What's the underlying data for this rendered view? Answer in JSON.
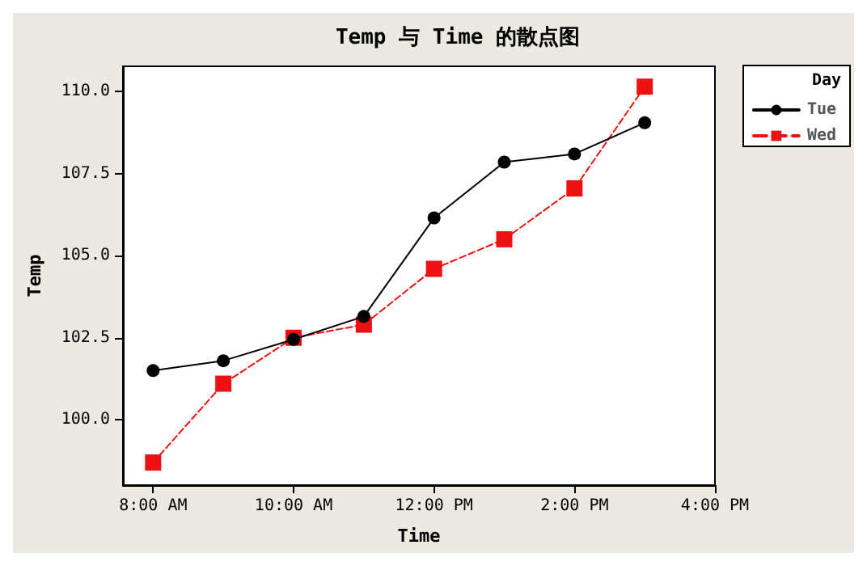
{
  "chart_data": {
    "type": "line",
    "title": "Temp 与 Time 的散点图",
    "xlabel": "Time",
    "ylabel": "Temp",
    "legend_title": "Day",
    "legend": "top right",
    "x": [
      8,
      9,
      10,
      11,
      12,
      13,
      14,
      15
    ],
    "series": [
      {
        "name": "Tue",
        "color": "#000000",
        "marker": "circle",
        "line_style": "solid",
        "values": [
          101.5,
          101.8,
          102.45,
          103.15,
          106.15,
          107.85,
          108.1,
          109.05
        ]
      },
      {
        "name": "Wed",
        "color": "#ee1111",
        "marker": "square",
        "line_style": "dashed",
        "values": [
          98.7,
          101.1,
          102.5,
          102.9,
          104.6,
          105.5,
          107.05,
          110.15
        ]
      }
    ],
    "xlim": [
      7.57,
      16.0
    ],
    "xticks": [
      {
        "value": 8,
        "label": "8:00 AM"
      },
      {
        "value": 10,
        "label": "10:00 AM"
      },
      {
        "value": 12,
        "label": "12:00 PM"
      },
      {
        "value": 14,
        "label": "2:00 PM"
      },
      {
        "value": 16,
        "label": "4:00 PM"
      }
    ],
    "ylim": [
      98.01,
      110.77
    ],
    "yticks": [
      {
        "value": 100,
        "label": "100.0"
      },
      {
        "value": 102.5,
        "label": "102.5"
      },
      {
        "value": 105,
        "label": "105.0"
      },
      {
        "value": 107.5,
        "label": "107.5"
      },
      {
        "value": 110,
        "label": "110.0"
      }
    ],
    "grid": false
  }
}
